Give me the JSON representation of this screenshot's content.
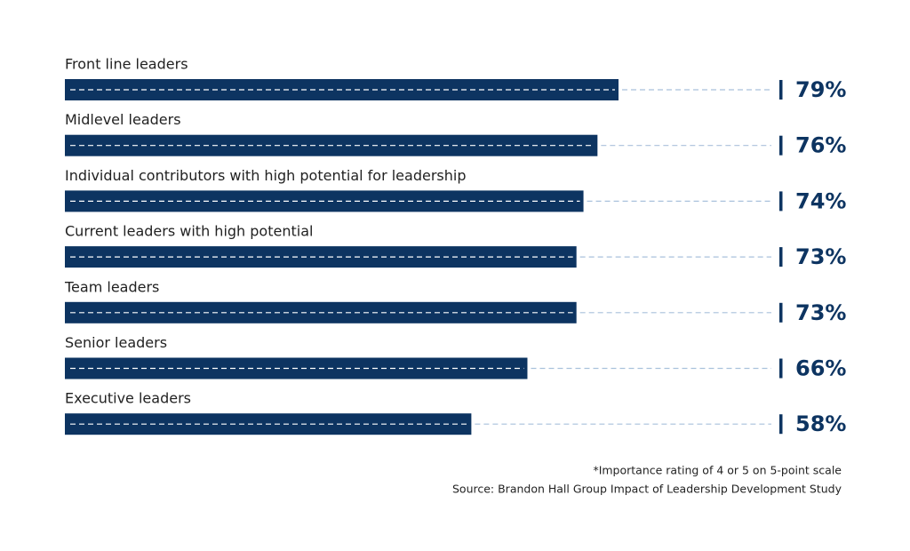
{
  "chart_data": {
    "type": "bar",
    "orientation": "horizontal",
    "categories": [
      "Front line leaders",
      "Midlevel leaders",
      "Individual contributors with high potential for leadership",
      "Current leaders with high potential",
      "Team leaders",
      "Senior leaders",
      "Executive leaders"
    ],
    "values": [
      79,
      76,
      74,
      73,
      73,
      66,
      58
    ],
    "value_labels": [
      "79%",
      "76%",
      "74%",
      "73%",
      "73%",
      "66%",
      "58%"
    ],
    "color": "#0d3461",
    "notes": [
      "*Importance rating of 4 or 5 on 5-point scale",
      "Source: Brandon Hall Group Impact of Leadership Development Study"
    ]
  }
}
